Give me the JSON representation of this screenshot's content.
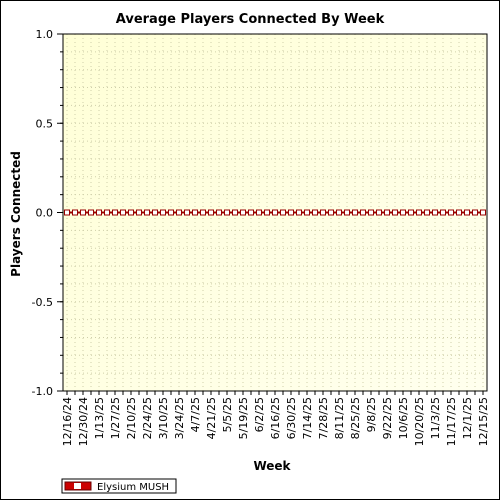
{
  "chart_data": {
    "type": "line",
    "title": "Average Players Connected By Week",
    "xlabel": "Week",
    "ylabel": "Players Connected",
    "ylim": [
      -1.0,
      1.0
    ],
    "y_ticks": [
      "-1.0",
      "-0.5",
      "0.0",
      "0.5",
      "1.0"
    ],
    "x_tick_labels": [
      "12/16/24",
      "12/30/24",
      "1/13/25",
      "1/27/25",
      "2/10/25",
      "2/24/25",
      "3/10/25",
      "3/24/25",
      "4/7/25",
      "4/21/25",
      "5/5/25",
      "5/19/25",
      "6/2/25",
      "6/16/25",
      "6/30/25",
      "7/14/25",
      "7/28/25",
      "8/11/25",
      "8/25/25",
      "9/8/25",
      "9/22/25",
      "10/6/25",
      "10/20/25",
      "11/3/25",
      "11/17/25",
      "12/1/25",
      "12/15/25"
    ],
    "x": [
      "12/16/24",
      "12/23/24",
      "12/30/24",
      "1/6/25",
      "1/13/25",
      "1/20/25",
      "1/27/25",
      "2/3/25",
      "2/10/25",
      "2/17/25",
      "2/24/25",
      "3/3/25",
      "3/10/25",
      "3/17/25",
      "3/24/25",
      "3/31/25",
      "4/7/25",
      "4/14/25",
      "4/21/25",
      "4/28/25",
      "5/5/25",
      "5/12/25",
      "5/19/25",
      "5/26/25",
      "6/2/25",
      "6/9/25",
      "6/16/25",
      "6/23/25",
      "6/30/25",
      "7/7/25",
      "7/14/25",
      "7/21/25",
      "7/28/25",
      "8/4/25",
      "8/11/25",
      "8/18/25",
      "8/25/25",
      "9/1/25",
      "9/8/25",
      "9/15/25",
      "9/22/25",
      "9/29/25",
      "10/6/25",
      "10/13/25",
      "10/20/25",
      "10/27/25",
      "11/3/25",
      "11/10/25",
      "11/17/25",
      "11/24/25",
      "12/1/25",
      "12/8/25",
      "12/15/25"
    ],
    "series": [
      {
        "name": "Elysium MUSH",
        "color": "#990000",
        "values": [
          0,
          0,
          0,
          0,
          0,
          0,
          0,
          0,
          0,
          0,
          0,
          0,
          0,
          0,
          0,
          0,
          0,
          0,
          0,
          0,
          0,
          0,
          0,
          0,
          0,
          0,
          0,
          0,
          0,
          0,
          0,
          0,
          0,
          0,
          0,
          0,
          0,
          0,
          0,
          0,
          0,
          0,
          0,
          0,
          0,
          0,
          0,
          0,
          0,
          0,
          0,
          0,
          0
        ]
      }
    ],
    "grid": true,
    "legend": "bottom-left",
    "plot_background": "#ffffe0"
  }
}
